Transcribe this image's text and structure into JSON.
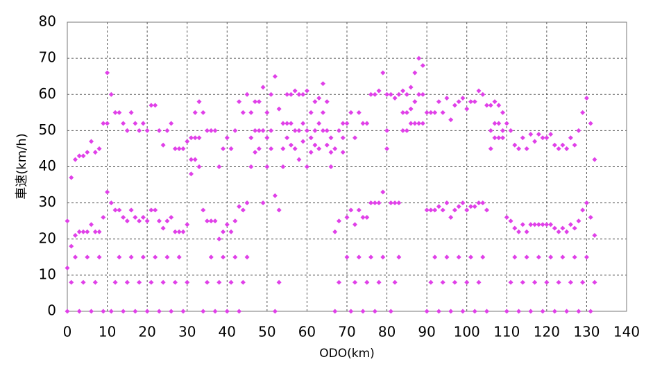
{
  "chart_data": {
    "type": "scatter",
    "xlabel": "ODO(km)",
    "ylabel": "車速(km/h)",
    "xlim": [
      0,
      140
    ],
    "xticks": [
      0,
      10,
      20,
      30,
      40,
      50,
      60,
      70,
      80,
      90,
      100,
      110,
      120,
      130,
      140
    ],
    "ylim": [
      0,
      80
    ],
    "yticks": [
      0,
      10,
      20,
      30,
      40,
      50,
      60,
      70,
      80
    ],
    "grid": true,
    "color": "#e040e8",
    "x": [
      0,
      0,
      0,
      1,
      1,
      1,
      2,
      2,
      2,
      3,
      3,
      3,
      4,
      4,
      4,
      5,
      5,
      5,
      6,
      6,
      6,
      7,
      7,
      7,
      8,
      8,
      8,
      9,
      9,
      9,
      10,
      10,
      10,
      11,
      11,
      11,
      12,
      12,
      12,
      13,
      13,
      13,
      14,
      14,
      14,
      15,
      15,
      15,
      16,
      16,
      16,
      17,
      17,
      17,
      18,
      18,
      18,
      19,
      19,
      19,
      20,
      20,
      20,
      21,
      21,
      21,
      22,
      22,
      22,
      23,
      23,
      23,
      24,
      24,
      24,
      25,
      25,
      25,
      26,
      26,
      26,
      27,
      27,
      27,
      28,
      28,
      28,
      29,
      29,
      29,
      30,
      30,
      30,
      31,
      31,
      31,
      32,
      32,
      32,
      33,
      33,
      33,
      34,
      34,
      34,
      35,
      35,
      35,
      36,
      36,
      36,
      37,
      37,
      37,
      38,
      38,
      38,
      39,
      39,
      39,
      40,
      40,
      40,
      41,
      41,
      41,
      42,
      42,
      42,
      43,
      43,
      43,
      44,
      44,
      44,
      45,
      45,
      45,
      46,
      46,
      46,
      47,
      47,
      47,
      48,
      48,
      48,
      49,
      49,
      49,
      50,
      50,
      50,
      51,
      51,
      51,
      52,
      52,
      52,
      53,
      53,
      53,
      54,
      54,
      54,
      55,
      55,
      55,
      56,
      56,
      56,
      57,
      57,
      57,
      58,
      58,
      58,
      59,
      59,
      59,
      60,
      60,
      60,
      61,
      61,
      61,
      62,
      62,
      62,
      63,
      63,
      63,
      64,
      64,
      64,
      65,
      65,
      65,
      66,
      66,
      66,
      67,
      67,
      67,
      68,
      68,
      68,
      69,
      69,
      69,
      70,
      70,
      70,
      71,
      71,
      71,
      72,
      72,
      72,
      73,
      73,
      73,
      74,
      74,
      74,
      75,
      75,
      75,
      76,
      76,
      76,
      77,
      77,
      77,
      78,
      78,
      78,
      79,
      79,
      79,
      80,
      80,
      80,
      81,
      81,
      81,
      82,
      82,
      82,
      83,
      83,
      83,
      84,
      84,
      84,
      85,
      85,
      85,
      86,
      86,
      86,
      87,
      87,
      87,
      88,
      88,
      88,
      89,
      89,
      89,
      90,
      90,
      90,
      91,
      91,
      91,
      92,
      92,
      92,
      93,
      93,
      93,
      94,
      94,
      94,
      95,
      95,
      95,
      96,
      96,
      96,
      97,
      97,
      97,
      98,
      98,
      98,
      99,
      99,
      99,
      100,
      100,
      100,
      101,
      101,
      101,
      102,
      102,
      102,
      103,
      103,
      103,
      104,
      104,
      104,
      105,
      105,
      105,
      106,
      106,
      106,
      107,
      107,
      107,
      108,
      108,
      108,
      109,
      109,
      109,
      110,
      110,
      110,
      111,
      111,
      111,
      112,
      112,
      112,
      113,
      113,
      113,
      114,
      114,
      114,
      115,
      115,
      115,
      116,
      116,
      116,
      117,
      117,
      117,
      118,
      118,
      118,
      119,
      119,
      119,
      120,
      120,
      120,
      121,
      121,
      121,
      122,
      122,
      122,
      123,
      123,
      123,
      124,
      124,
      124,
      125,
      125,
      125,
      126,
      126,
      126,
      127,
      127,
      127,
      128,
      128,
      128,
      129,
      129,
      129,
      130,
      130,
      130,
      131,
      131,
      131,
      132,
      132,
      132
    ],
    "y": [
      25,
      12,
      0,
      37,
      18,
      8,
      42,
      21,
      15,
      43,
      22,
      0,
      43,
      22,
      8,
      44,
      22,
      15,
      47,
      24,
      0,
      44,
      22,
      8,
      45,
      22,
      15,
      52,
      26,
      0,
      66,
      33,
      52,
      60,
      30,
      0,
      55,
      28,
      8,
      55,
      28,
      15,
      52,
      26,
      0,
      50,
      25,
      8,
      55,
      28,
      15,
      52,
      26,
      0,
      50,
      25,
      8,
      52,
      26,
      15,
      50,
      25,
      0,
      57,
      28,
      8,
      57,
      28,
      15,
      50,
      25,
      0,
      46,
      23,
      8,
      50,
      25,
      15,
      52,
      26,
      0,
      45,
      22,
      8,
      45,
      22,
      15,
      45,
      22,
      0,
      47,
      24,
      8,
      48,
      42,
      38,
      55,
      48,
      42,
      58,
      48,
      40,
      55,
      28,
      0,
      50,
      25,
      8,
      50,
      25,
      15,
      50,
      25,
      0,
      40,
      20,
      8,
      45,
      22,
      15,
      48,
      24,
      0,
      45,
      22,
      8,
      50,
      25,
      15,
      58,
      29,
      0,
      55,
      28,
      8,
      60,
      30,
      15,
      55,
      48,
      40,
      58,
      50,
      44,
      58,
      50,
      45,
      62,
      50,
      30,
      55,
      48,
      40,
      60,
      50,
      45,
      65,
      32,
      0,
      56,
      28,
      8,
      52,
      45,
      40,
      60,
      52,
      48,
      60,
      52,
      46,
      61,
      50,
      45,
      60,
      50,
      42,
      60,
      52,
      47,
      61,
      50,
      40,
      55,
      48,
      44,
      58,
      50,
      46,
      59,
      52,
      45,
      63,
      55,
      50,
      58,
      50,
      46,
      48,
      44,
      40,
      45,
      22,
      0,
      50,
      25,
      8,
      52,
      48,
      44,
      52,
      26,
      15,
      55,
      28,
      0,
      48,
      24,
      8,
      55,
      28,
      15,
      52,
      26,
      0,
      52,
      26,
      8,
      60,
      30,
      15,
      60,
      30,
      0,
      61,
      30,
      8,
      66,
      33,
      15,
      60,
      50,
      45,
      60,
      30,
      0,
      59,
      30,
      8,
      60,
      30,
      15,
      61,
      55,
      50,
      60,
      55,
      50,
      62,
      56,
      52,
      66,
      58,
      52,
      70,
      60,
      52,
      68,
      60,
      52,
      55,
      28,
      0,
      55,
      28,
      8,
      55,
      28,
      15,
      58,
      29,
      0,
      55,
      28,
      8,
      59,
      30,
      15,
      53,
      26,
      0,
      57,
      28,
      8,
      58,
      29,
      15,
      59,
      30,
      0,
      56,
      28,
      8,
      58,
      29,
      15,
      58,
      29,
      0,
      61,
      30,
      8,
      60,
      30,
      15,
      57,
      28,
      0,
      57,
      50,
      45,
      58,
      52,
      48,
      57,
      52,
      48,
      55,
      50,
      48,
      52,
      26,
      0,
      50,
      25,
      8,
      46,
      23,
      15,
      45,
      22,
      0,
      48,
      24,
      8,
      45,
      22,
      15,
      49,
      24,
      0,
      47,
      24,
      8,
      49,
      24,
      15,
      48,
      24,
      0,
      48,
      24,
      8,
      49,
      24,
      15,
      46,
      23,
      0,
      45,
      22,
      8,
      46,
      23,
      15,
      45,
      22,
      0,
      48,
      24,
      8,
      46,
      23,
      15,
      50,
      25,
      0,
      55,
      28,
      8,
      59,
      30,
      15,
      52,
      26,
      0,
      42,
      21,
      8
    ]
  }
}
